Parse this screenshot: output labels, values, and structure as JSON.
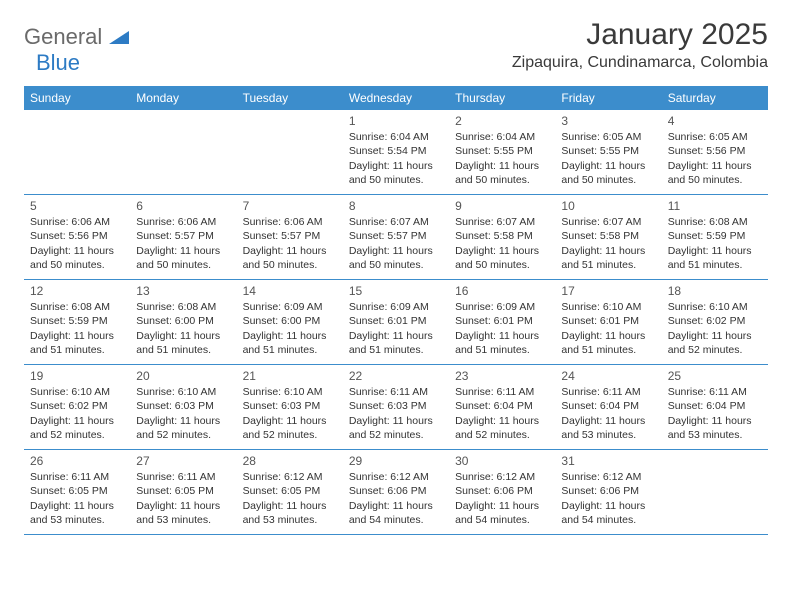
{
  "brand": {
    "name1": "General",
    "name2": "Blue"
  },
  "title": "January 2025",
  "location": "Zipaquira, Cundinamarca, Colombia",
  "colors": {
    "header_bg": "#3c8dcc",
    "header_text": "#ffffff",
    "border": "#3c8dcc",
    "text": "#333333",
    "logo_gray": "#6a6a6a",
    "logo_blue": "#2d7bc4",
    "background": "#ffffff"
  },
  "typography": {
    "title_fontsize": 30,
    "location_fontsize": 16,
    "dow_fontsize": 12,
    "daynum_fontsize": 12,
    "body_fontsize": 10.5
  },
  "daysOfWeek": [
    "Sunday",
    "Monday",
    "Tuesday",
    "Wednesday",
    "Thursday",
    "Friday",
    "Saturday"
  ],
  "weeks": [
    [
      null,
      null,
      null,
      {
        "n": "1",
        "sr": "Sunrise: 6:04 AM",
        "ss": "Sunset: 5:54 PM",
        "d1": "Daylight: 11 hours",
        "d2": "and 50 minutes."
      },
      {
        "n": "2",
        "sr": "Sunrise: 6:04 AM",
        "ss": "Sunset: 5:55 PM",
        "d1": "Daylight: 11 hours",
        "d2": "and 50 minutes."
      },
      {
        "n": "3",
        "sr": "Sunrise: 6:05 AM",
        "ss": "Sunset: 5:55 PM",
        "d1": "Daylight: 11 hours",
        "d2": "and 50 minutes."
      },
      {
        "n": "4",
        "sr": "Sunrise: 6:05 AM",
        "ss": "Sunset: 5:56 PM",
        "d1": "Daylight: 11 hours",
        "d2": "and 50 minutes."
      }
    ],
    [
      {
        "n": "5",
        "sr": "Sunrise: 6:06 AM",
        "ss": "Sunset: 5:56 PM",
        "d1": "Daylight: 11 hours",
        "d2": "and 50 minutes."
      },
      {
        "n": "6",
        "sr": "Sunrise: 6:06 AM",
        "ss": "Sunset: 5:57 PM",
        "d1": "Daylight: 11 hours",
        "d2": "and 50 minutes."
      },
      {
        "n": "7",
        "sr": "Sunrise: 6:06 AM",
        "ss": "Sunset: 5:57 PM",
        "d1": "Daylight: 11 hours",
        "d2": "and 50 minutes."
      },
      {
        "n": "8",
        "sr": "Sunrise: 6:07 AM",
        "ss": "Sunset: 5:57 PM",
        "d1": "Daylight: 11 hours",
        "d2": "and 50 minutes."
      },
      {
        "n": "9",
        "sr": "Sunrise: 6:07 AM",
        "ss": "Sunset: 5:58 PM",
        "d1": "Daylight: 11 hours",
        "d2": "and 50 minutes."
      },
      {
        "n": "10",
        "sr": "Sunrise: 6:07 AM",
        "ss": "Sunset: 5:58 PM",
        "d1": "Daylight: 11 hours",
        "d2": "and 51 minutes."
      },
      {
        "n": "11",
        "sr": "Sunrise: 6:08 AM",
        "ss": "Sunset: 5:59 PM",
        "d1": "Daylight: 11 hours",
        "d2": "and 51 minutes."
      }
    ],
    [
      {
        "n": "12",
        "sr": "Sunrise: 6:08 AM",
        "ss": "Sunset: 5:59 PM",
        "d1": "Daylight: 11 hours",
        "d2": "and 51 minutes."
      },
      {
        "n": "13",
        "sr": "Sunrise: 6:08 AM",
        "ss": "Sunset: 6:00 PM",
        "d1": "Daylight: 11 hours",
        "d2": "and 51 minutes."
      },
      {
        "n": "14",
        "sr": "Sunrise: 6:09 AM",
        "ss": "Sunset: 6:00 PM",
        "d1": "Daylight: 11 hours",
        "d2": "and 51 minutes."
      },
      {
        "n": "15",
        "sr": "Sunrise: 6:09 AM",
        "ss": "Sunset: 6:01 PM",
        "d1": "Daylight: 11 hours",
        "d2": "and 51 minutes."
      },
      {
        "n": "16",
        "sr": "Sunrise: 6:09 AM",
        "ss": "Sunset: 6:01 PM",
        "d1": "Daylight: 11 hours",
        "d2": "and 51 minutes."
      },
      {
        "n": "17",
        "sr": "Sunrise: 6:10 AM",
        "ss": "Sunset: 6:01 PM",
        "d1": "Daylight: 11 hours",
        "d2": "and 51 minutes."
      },
      {
        "n": "18",
        "sr": "Sunrise: 6:10 AM",
        "ss": "Sunset: 6:02 PM",
        "d1": "Daylight: 11 hours",
        "d2": "and 52 minutes."
      }
    ],
    [
      {
        "n": "19",
        "sr": "Sunrise: 6:10 AM",
        "ss": "Sunset: 6:02 PM",
        "d1": "Daylight: 11 hours",
        "d2": "and 52 minutes."
      },
      {
        "n": "20",
        "sr": "Sunrise: 6:10 AM",
        "ss": "Sunset: 6:03 PM",
        "d1": "Daylight: 11 hours",
        "d2": "and 52 minutes."
      },
      {
        "n": "21",
        "sr": "Sunrise: 6:10 AM",
        "ss": "Sunset: 6:03 PM",
        "d1": "Daylight: 11 hours",
        "d2": "and 52 minutes."
      },
      {
        "n": "22",
        "sr": "Sunrise: 6:11 AM",
        "ss": "Sunset: 6:03 PM",
        "d1": "Daylight: 11 hours",
        "d2": "and 52 minutes."
      },
      {
        "n": "23",
        "sr": "Sunrise: 6:11 AM",
        "ss": "Sunset: 6:04 PM",
        "d1": "Daylight: 11 hours",
        "d2": "and 52 minutes."
      },
      {
        "n": "24",
        "sr": "Sunrise: 6:11 AM",
        "ss": "Sunset: 6:04 PM",
        "d1": "Daylight: 11 hours",
        "d2": "and 53 minutes."
      },
      {
        "n": "25",
        "sr": "Sunrise: 6:11 AM",
        "ss": "Sunset: 6:04 PM",
        "d1": "Daylight: 11 hours",
        "d2": "and 53 minutes."
      }
    ],
    [
      {
        "n": "26",
        "sr": "Sunrise: 6:11 AM",
        "ss": "Sunset: 6:05 PM",
        "d1": "Daylight: 11 hours",
        "d2": "and 53 minutes."
      },
      {
        "n": "27",
        "sr": "Sunrise: 6:11 AM",
        "ss": "Sunset: 6:05 PM",
        "d1": "Daylight: 11 hours",
        "d2": "and 53 minutes."
      },
      {
        "n": "28",
        "sr": "Sunrise: 6:12 AM",
        "ss": "Sunset: 6:05 PM",
        "d1": "Daylight: 11 hours",
        "d2": "and 53 minutes."
      },
      {
        "n": "29",
        "sr": "Sunrise: 6:12 AM",
        "ss": "Sunset: 6:06 PM",
        "d1": "Daylight: 11 hours",
        "d2": "and 54 minutes."
      },
      {
        "n": "30",
        "sr": "Sunrise: 6:12 AM",
        "ss": "Sunset: 6:06 PM",
        "d1": "Daylight: 11 hours",
        "d2": "and 54 minutes."
      },
      {
        "n": "31",
        "sr": "Sunrise: 6:12 AM",
        "ss": "Sunset: 6:06 PM",
        "d1": "Daylight: 11 hours",
        "d2": "and 54 minutes."
      },
      null
    ]
  ]
}
